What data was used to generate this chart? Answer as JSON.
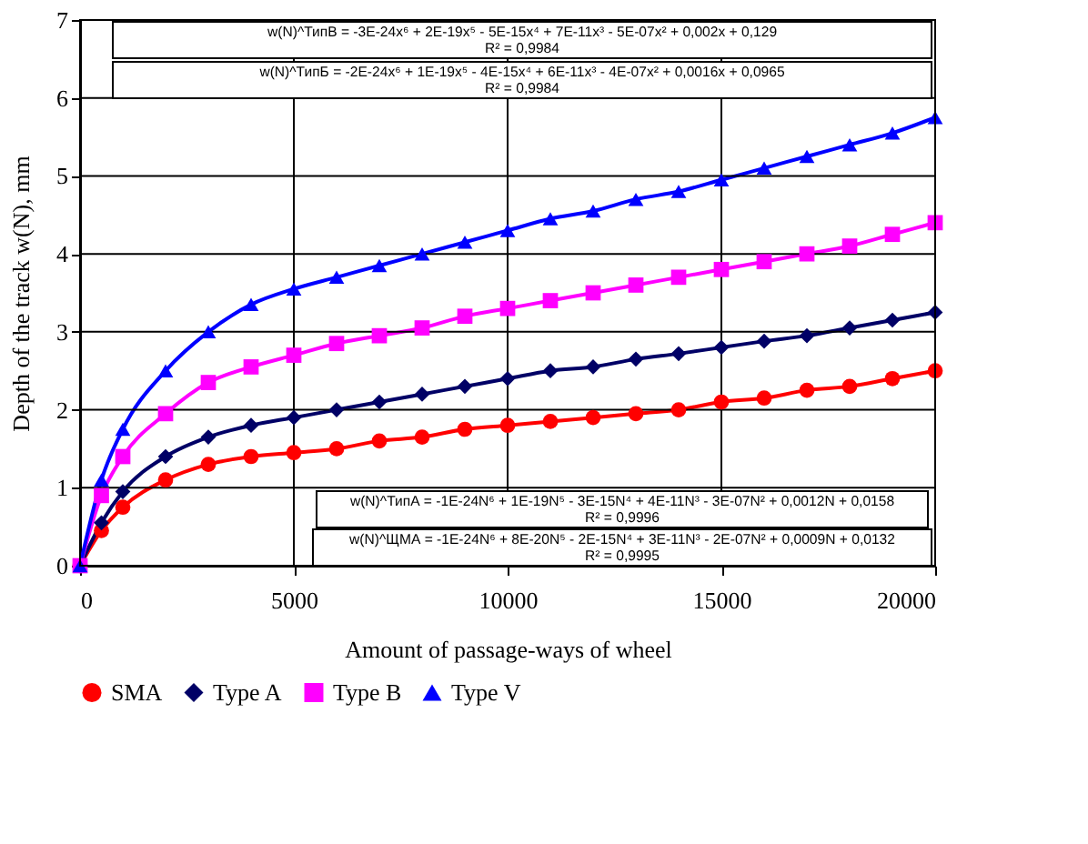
{
  "chart_data": {
    "type": "line",
    "xlabel": "Amount of passage-ways of wheel",
    "ylabel": "Depth of the track w(N), mm",
    "xlim": [
      0,
      20000
    ],
    "xticks": [
      0,
      5000,
      10000,
      15000,
      20000
    ],
    "line_style": "solid",
    "ylim": [
      0,
      7
    ],
    "yticks": [
      0,
      1,
      2,
      3,
      4,
      5,
      6,
      7
    ],
    "grid": true,
    "legend": "bottom",
    "x": [
      0,
      500,
      1000,
      2000,
      3000,
      4000,
      5000,
      6000,
      7000,
      8000,
      9000,
      10000,
      11000,
      12000,
      13000,
      14000,
      15000,
      16000,
      17000,
      18000,
      19000,
      20000
    ],
    "series": [
      {
        "name": "SMA",
        "color": "#ff0000",
        "marker": "circle",
        "values": [
          0,
          0.45,
          0.75,
          1.1,
          1.3,
          1.4,
          1.45,
          1.5,
          1.6,
          1.65,
          1.75,
          1.8,
          1.85,
          1.9,
          1.95,
          2.0,
          2.1,
          2.15,
          2.25,
          2.3,
          2.4,
          2.5
        ]
      },
      {
        "name": "Type A",
        "color": "#000066",
        "marker": "diamond",
        "values": [
          0,
          0.55,
          0.95,
          1.4,
          1.65,
          1.8,
          1.9,
          2.0,
          2.1,
          2.2,
          2.3,
          2.4,
          2.5,
          2.55,
          2.65,
          2.72,
          2.8,
          2.88,
          2.95,
          3.05,
          3.15,
          3.25
        ]
      },
      {
        "name": "Type B",
        "color": "#ff00ff",
        "marker": "square",
        "values": [
          0,
          0.9,
          1.4,
          1.95,
          2.35,
          2.55,
          2.7,
          2.85,
          2.95,
          3.05,
          3.2,
          3.3,
          3.4,
          3.5,
          3.6,
          3.7,
          3.8,
          3.9,
          4.0,
          4.1,
          4.25,
          4.4
        ]
      },
      {
        "name": "Type V",
        "color": "#0000ff",
        "marker": "triangle",
        "values": [
          0,
          1.1,
          1.75,
          2.5,
          3.0,
          3.35,
          3.55,
          3.7,
          3.85,
          4.0,
          4.15,
          4.3,
          4.45,
          4.55,
          4.7,
          4.8,
          4.95,
          5.1,
          5.25,
          5.4,
          5.55,
          5.75
        ]
      }
    ],
    "annotations": [
      "w(N)^ТипВ = -3E-24x⁶ + 2E-19x⁵ - 5E-15x⁴ + 7E-11x³ - 5E-07x² + 0,002x + 0,129\nR² = 0,9984",
      "w(N)^ТипБ = -2E-24x⁶ + 1E-19x⁵ - 4E-15x⁴ + 6E-11x³ - 4E-07x² + 0,0016x + 0,0965\nR² = 0,9984",
      "w(N)^ТипА = -1E-24N⁶ + 1E-19N⁵ - 3E-15N⁴ + 4E-11N³ - 3E-07N² + 0,0012N + 0,0158\nR² = 0,9996",
      "w(N)^ЩМА = -1E-24N⁶ + 8E-20N⁵ - 2E-15N⁴ + 3E-11N³ - 2E-07N² + 0,0009N + 0,0132\nR² = 0,9995"
    ]
  }
}
